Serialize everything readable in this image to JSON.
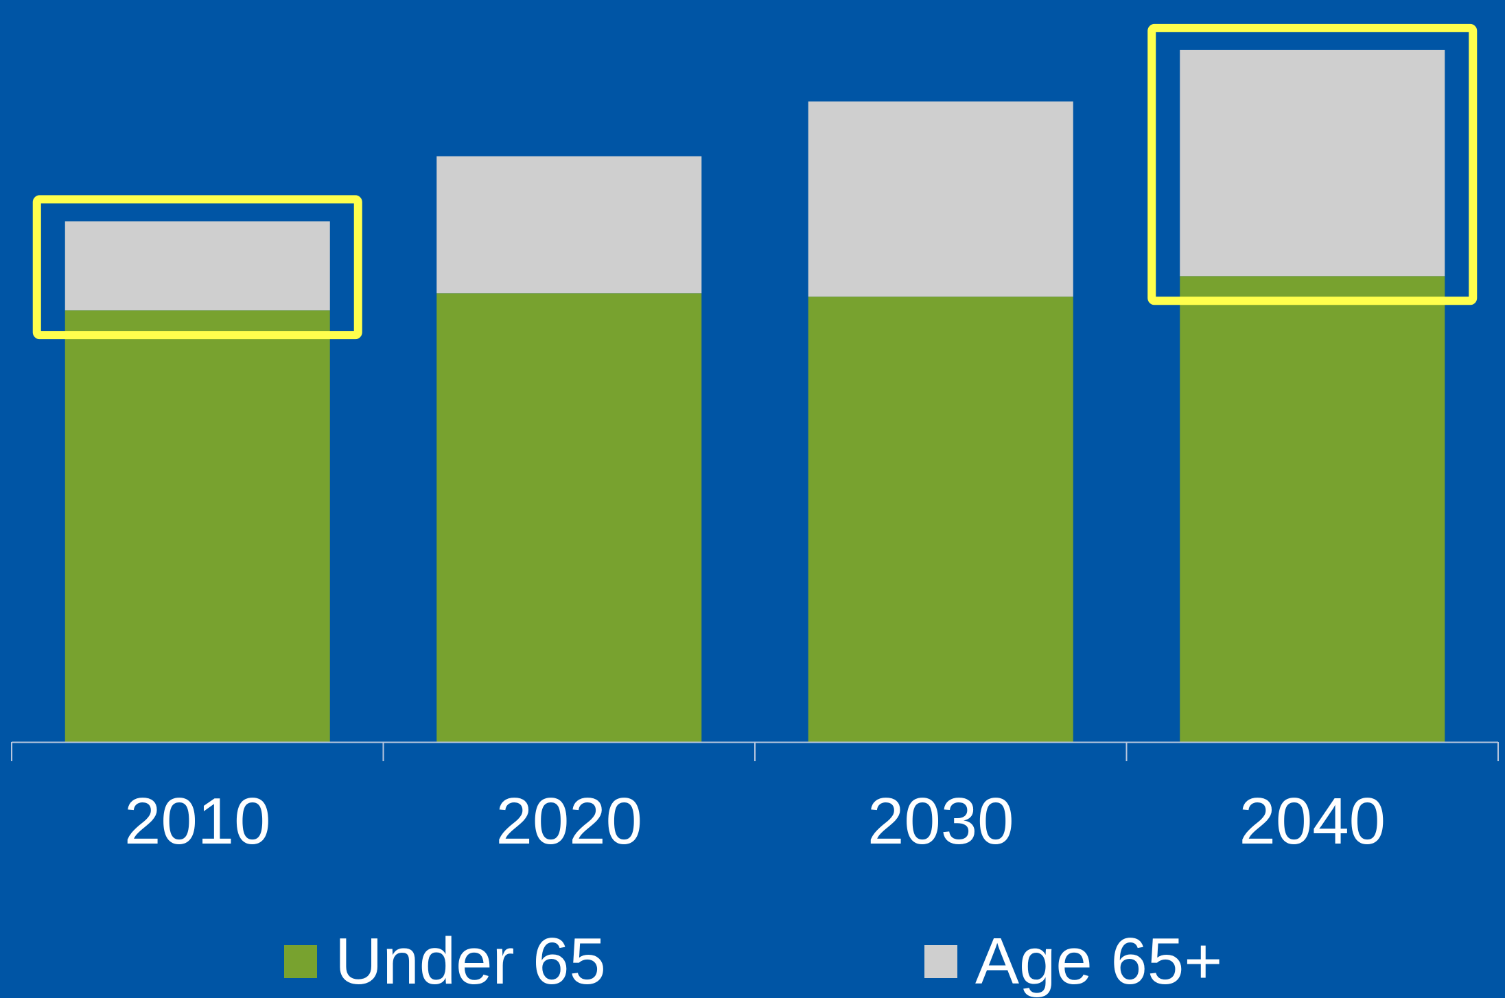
{
  "chart_data": {
    "type": "bar",
    "stacked": true,
    "categories": [
      "2010",
      "2020",
      "2030",
      "2040"
    ],
    "series": [
      {
        "name": "Under 65",
        "values": [
          63,
          65.5,
          65,
          68
        ],
        "color": "#78A22F"
      },
      {
        "name": "Age 65+",
        "values": [
          13,
          20,
          28.5,
          33
        ],
        "color": "#CFCFCF"
      }
    ],
    "ylim": [
      0,
      107
    ],
    "grid": false,
    "legend_position": "bottom",
    "title": "",
    "xlabel": "",
    "ylabel": "",
    "highlighted_categories": [
      "2010",
      "2040"
    ],
    "highlight_color": "#FFFF4D",
    "background_color": "#0055A5",
    "axis_color": "#B8C6DE",
    "tick_label_color": "#FFFFFF"
  }
}
